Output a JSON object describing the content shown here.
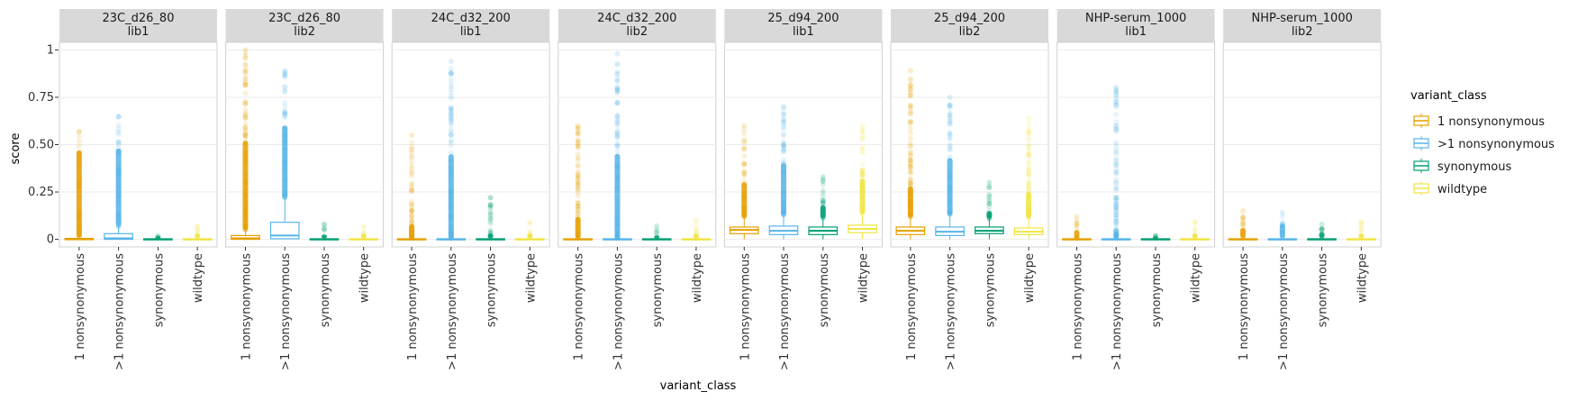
{
  "chart_data": {
    "type": "box",
    "xlabel": "variant_class",
    "ylabel": "score",
    "ylim": [
      -0.04,
      1.04
    ],
    "yticks": [
      0,
      0.25,
      0.5,
      0.75,
      1
    ],
    "ytick_labels": [
      "0",
      "0.25",
      "0.50",
      "0.75",
      "1"
    ],
    "categories": [
      "1 nonsynonymous",
      ">1 nonsynonymous",
      "synonymous",
      "wildtype"
    ],
    "legend": {
      "title": "variant_class",
      "position": "right",
      "entries": [
        "1 nonsynonymous",
        ">1 nonsynonymous",
        "synonymous",
        "wildtype"
      ]
    },
    "colors": {
      "1 nonsynonymous": "#E69F00",
      ">1 nonsynonymous": "#56B4E9",
      "synonymous": "#009E73",
      "wildtype": "#F0E442"
    },
    "grid": true,
    "facets": [
      {
        "strip": [
          "23C_d26_80",
          "lib1"
        ],
        "boxes": [
          {
            "category": "1 nonsynonymous",
            "q1": 0,
            "median": 0,
            "q3": 0.005,
            "whislo": 0,
            "whishi": 0.01,
            "outlier_max": 0.57,
            "outlier_min": 0.01,
            "solid_until": 0.47
          },
          {
            "category": ">1 nonsynonymous",
            "q1": 0,
            "median": 0.005,
            "q3": 0.03,
            "whislo": 0,
            "whishi": 0.07,
            "outlier_max": 0.65,
            "outlier_min": 0.07,
            "solid_until": 0.48
          },
          {
            "category": "synonymous",
            "q1": 0,
            "median": 0,
            "q3": 0.003,
            "whislo": 0,
            "whishi": 0.006,
            "outlier_max": 0.02,
            "outlier_min": 0.006,
            "solid_until": 0.015
          },
          {
            "category": "wildtype",
            "q1": 0,
            "median": 0,
            "q3": 0.003,
            "whislo": 0,
            "whishi": 0.006,
            "outlier_max": 0.07,
            "outlier_min": 0.006,
            "solid_until": 0.03
          }
        ]
      },
      {
        "strip": [
          "23C_d26_80",
          "lib2"
        ],
        "boxes": [
          {
            "category": "1 nonsynonymous",
            "q1": 0,
            "median": 0.005,
            "q3": 0.02,
            "whislo": 0,
            "whishi": 0.05,
            "outlier_max": 1.0,
            "outlier_min": 0.05,
            "solid_until": 0.52
          },
          {
            "category": ">1 nonsynonymous",
            "q1": 0.003,
            "median": 0.02,
            "q3": 0.09,
            "whislo": 0,
            "whishi": 0.22,
            "outlier_max": 0.89,
            "outlier_min": 0.22,
            "solid_until": 0.6
          },
          {
            "category": "synonymous",
            "q1": 0,
            "median": 0,
            "q3": 0.003,
            "whislo": 0,
            "whishi": 0.006,
            "outlier_max": 0.08,
            "outlier_min": 0.006,
            "solid_until": 0.025
          },
          {
            "category": "wildtype",
            "q1": 0,
            "median": 0,
            "q3": 0.003,
            "whislo": 0,
            "whishi": 0.006,
            "outlier_max": 0.07,
            "outlier_min": 0.006,
            "solid_until": 0.03
          }
        ]
      },
      {
        "strip": [
          "24C_d32_200",
          "lib1"
        ],
        "boxes": [
          {
            "category": "1 nonsynonymous",
            "q1": 0,
            "median": 0,
            "q3": 0.003,
            "whislo": 0,
            "whishi": 0.006,
            "outlier_max": 0.55,
            "outlier_min": 0.006,
            "solid_until": 0.08
          },
          {
            "category": ">1 nonsynonymous",
            "q1": 0,
            "median": 0,
            "q3": 0.003,
            "whislo": 0,
            "whishi": 0.006,
            "outlier_max": 0.94,
            "outlier_min": 0.006,
            "solid_until": 0.45
          },
          {
            "category": "synonymous",
            "q1": 0,
            "median": 0,
            "q3": 0.003,
            "whislo": 0,
            "whishi": 0.006,
            "outlier_max": 0.22,
            "outlier_min": 0.006,
            "solid_until": 0.03
          },
          {
            "category": "wildtype",
            "q1": 0,
            "median": 0,
            "q3": 0.003,
            "whislo": 0,
            "whishi": 0.006,
            "outlier_max": 0.09,
            "outlier_min": 0.006,
            "solid_until": 0.03
          }
        ]
      },
      {
        "strip": [
          "24C_d32_200",
          "lib2"
        ],
        "boxes": [
          {
            "category": "1 nonsynonymous",
            "q1": 0,
            "median": 0,
            "q3": 0.003,
            "whislo": 0,
            "whishi": 0.006,
            "outlier_max": 0.6,
            "outlier_min": 0.006,
            "solid_until": 0.12
          },
          {
            "category": ">1 nonsynonymous",
            "q1": 0,
            "median": 0,
            "q3": 0.003,
            "whislo": 0,
            "whishi": 0.006,
            "outlier_max": 0.98,
            "outlier_min": 0.006,
            "solid_until": 0.45
          },
          {
            "category": "synonymous",
            "q1": 0,
            "median": 0,
            "q3": 0.003,
            "whislo": 0,
            "whishi": 0.006,
            "outlier_max": 0.07,
            "outlier_min": 0.006,
            "solid_until": 0.02
          },
          {
            "category": "wildtype",
            "q1": 0,
            "median": 0,
            "q3": 0.003,
            "whislo": 0,
            "whishi": 0.006,
            "outlier_max": 0.1,
            "outlier_min": 0.006,
            "solid_until": 0.03
          }
        ]
      },
      {
        "strip": [
          "25_d94_200",
          "lib1"
        ],
        "boxes": [
          {
            "category": "1 nonsynonymous",
            "q1": 0.03,
            "median": 0.05,
            "q3": 0.065,
            "whislo": 0,
            "whishi": 0.12,
            "outlier_max": 0.6,
            "outlier_min": 0.12,
            "solid_until": 0.3
          },
          {
            "category": ">1 nonsynonymous",
            "q1": 0.025,
            "median": 0.045,
            "q3": 0.07,
            "whislo": 0,
            "whishi": 0.13,
            "outlier_max": 0.7,
            "outlier_min": 0.13,
            "solid_until": 0.4
          },
          {
            "category": "synonymous",
            "q1": 0.025,
            "median": 0.045,
            "q3": 0.065,
            "whislo": 0,
            "whishi": 0.11,
            "outlier_max": 0.33,
            "outlier_min": 0.11,
            "solid_until": 0.18
          },
          {
            "category": "wildtype",
            "q1": 0.035,
            "median": 0.055,
            "q3": 0.075,
            "whislo": 0,
            "whishi": 0.14,
            "outlier_max": 0.6,
            "outlier_min": 0.14,
            "solid_until": 0.32
          }
        ]
      },
      {
        "strip": [
          "25_d94_200",
          "lib2"
        ],
        "boxes": [
          {
            "category": "1 nonsynonymous",
            "q1": 0.025,
            "median": 0.045,
            "q3": 0.065,
            "whislo": 0,
            "whishi": 0.12,
            "outlier_max": 0.89,
            "outlier_min": 0.12,
            "solid_until": 0.28
          },
          {
            "category": ">1 nonsynonymous",
            "q1": 0.02,
            "median": 0.04,
            "q3": 0.065,
            "whislo": 0,
            "whishi": 0.13,
            "outlier_max": 0.75,
            "outlier_min": 0.13,
            "solid_until": 0.43
          },
          {
            "category": "synonymous",
            "q1": 0.03,
            "median": 0.045,
            "q3": 0.065,
            "whislo": 0,
            "whishi": 0.11,
            "outlier_max": 0.3,
            "outlier_min": 0.11,
            "solid_until": 0.15
          },
          {
            "category": "wildtype",
            "q1": 0.025,
            "median": 0.04,
            "q3": 0.06,
            "whislo": 0,
            "whishi": 0.12,
            "outlier_max": 0.64,
            "outlier_min": 0.12,
            "solid_until": 0.25
          }
        ]
      },
      {
        "strip": [
          "NHP-serum_1000",
          "lib1"
        ],
        "boxes": [
          {
            "category": "1 nonsynonymous",
            "q1": 0,
            "median": 0,
            "q3": 0.003,
            "whislo": 0,
            "whishi": 0.006,
            "outlier_max": 0.12,
            "outlier_min": 0.006,
            "solid_until": 0.05
          },
          {
            "category": ">1 nonsynonymous",
            "q1": 0,
            "median": 0,
            "q3": 0.003,
            "whislo": 0,
            "whishi": 0.006,
            "outlier_max": 0.8,
            "outlier_min": 0.006,
            "solid_until": 0.04
          },
          {
            "category": "synonymous",
            "q1": 0,
            "median": 0,
            "q3": 0.003,
            "whislo": 0,
            "whishi": 0.006,
            "outlier_max": 0.02,
            "outlier_min": 0.006,
            "solid_until": 0.015
          },
          {
            "category": "wildtype",
            "q1": 0,
            "median": 0,
            "q3": 0.003,
            "whislo": 0,
            "whishi": 0.006,
            "outlier_max": 0.09,
            "outlier_min": 0.006,
            "solid_until": 0.03
          }
        ]
      },
      {
        "strip": [
          "NHP-serum_1000",
          "lib2"
        ],
        "boxes": [
          {
            "category": "1 nonsynonymous",
            "q1": 0,
            "median": 0,
            "q3": 0.003,
            "whislo": 0,
            "whishi": 0.006,
            "outlier_max": 0.15,
            "outlier_min": 0.006,
            "solid_until": 0.06
          },
          {
            "category": ">1 nonsynonymous",
            "q1": 0,
            "median": 0,
            "q3": 0.003,
            "whislo": 0,
            "whishi": 0.006,
            "outlier_max": 0.14,
            "outlier_min": 0.006,
            "solid_until": 0.08
          },
          {
            "category": "synonymous",
            "q1": 0,
            "median": 0,
            "q3": 0.003,
            "whislo": 0,
            "whishi": 0.006,
            "outlier_max": 0.08,
            "outlier_min": 0.006,
            "solid_until": 0.04
          },
          {
            "category": "wildtype",
            "q1": 0,
            "median": 0,
            "q3": 0.003,
            "whislo": 0,
            "whishi": 0.006,
            "outlier_max": 0.09,
            "outlier_min": 0.006,
            "solid_until": 0.03
          }
        ]
      }
    ]
  }
}
